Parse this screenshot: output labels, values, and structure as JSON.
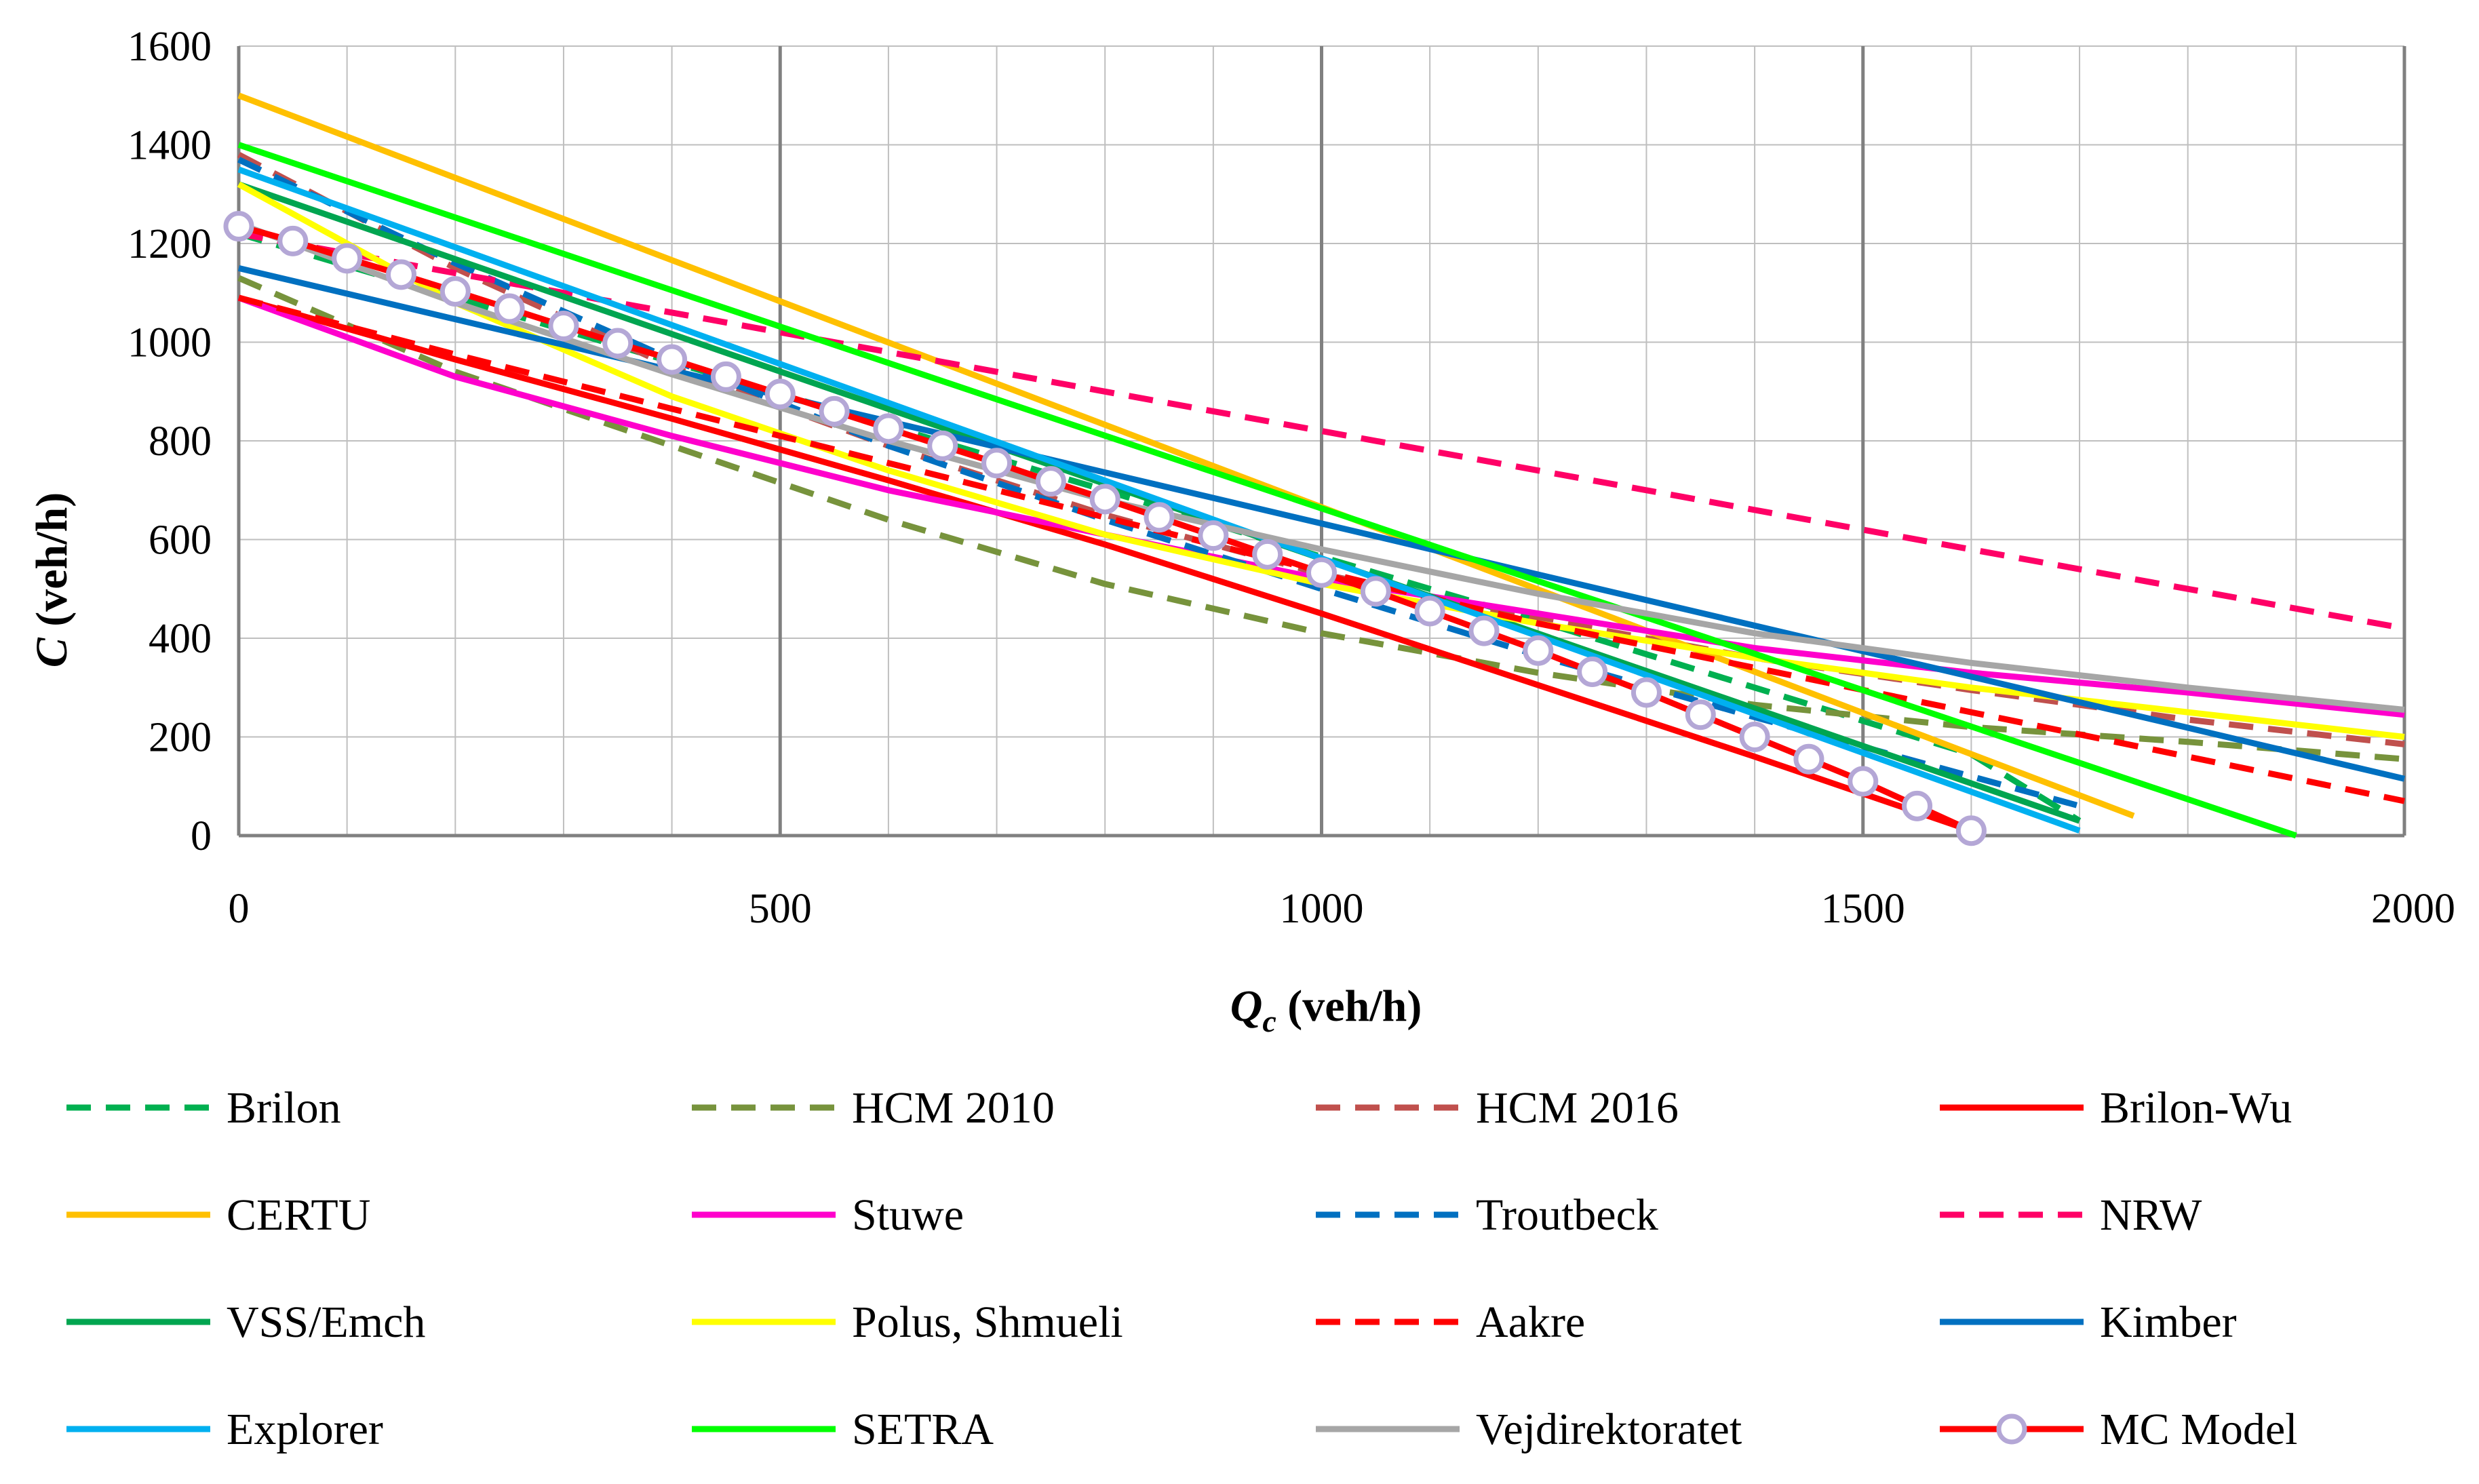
{
  "chart_data": {
    "type": "line",
    "title": "",
    "xlabel": "Q",
    "xlabel_sub": "c",
    "xlabel_unit": " (veh/h)",
    "ylabel": "C",
    "ylabel_unit": " (veh/h)",
    "xlim": [
      0,
      2000
    ],
    "ylim": [
      0,
      1600
    ],
    "x_ticks": [
      0,
      500,
      1000,
      1500,
      2000
    ],
    "y_ticks": [
      0,
      200,
      400,
      600,
      800,
      1000,
      1200,
      1400,
      1600
    ],
    "x_tick_labels": [
      "0",
      "500",
      "1000",
      "1500",
      "2000"
    ],
    "y_tick_labels": [
      "0",
      "200",
      "400",
      "600",
      "800",
      "1000",
      "1200",
      "1400",
      "1600"
    ],
    "grid": true,
    "legend_position": "bottom",
    "series": [
      {
        "name": "Brilon",
        "color": "#00B050",
        "dash": "dashed",
        "x": [
          0,
          200,
          400,
          600,
          800,
          1000,
          1200,
          1400,
          1600,
          1700
        ],
        "y": [
          1220,
          1090,
          960,
          830,
          700,
          565,
          435,
          300,
          165,
          30
        ]
      },
      {
        "name": "HCM 2010",
        "color": "#77933C",
        "dash": "dashed",
        "x": [
          0,
          200,
          400,
          600,
          800,
          1000,
          1200,
          1400,
          1600,
          1800,
          2000
        ],
        "y": [
          1130,
          940,
          790,
          640,
          510,
          410,
          330,
          265,
          220,
          190,
          155
        ]
      },
      {
        "name": "HCM 2016",
        "color": "#C0504D",
        "dash": "dashed",
        "x": [
          0,
          200,
          400,
          600,
          800,
          1000,
          1200,
          1400,
          1600,
          1800,
          2000
        ],
        "y": [
          1380,
          1150,
          950,
          790,
          650,
          530,
          440,
          360,
          295,
          235,
          185
        ]
      },
      {
        "name": "Brilon-Wu",
        "color": "#FF0000",
        "dash": "solid",
        "x": [
          0,
          200,
          400,
          600,
          800,
          1000,
          1200,
          1400,
          1600
        ],
        "y": [
          1090,
          965,
          845,
          720,
          590,
          450,
          305,
          160,
          10
        ]
      },
      {
        "name": "CERTU",
        "color": "#FFC000",
        "dash": "solid",
        "x": [
          0,
          1750
        ],
        "y": [
          1500,
          40
        ]
      },
      {
        "name": "Stuwe",
        "color": "#FF00CC",
        "dash": "solid",
        "x": [
          0,
          200,
          400,
          600,
          800,
          1000,
          1200,
          1400,
          1600,
          1800,
          2000
        ],
        "y": [
          1090,
          930,
          810,
          700,
          610,
          520,
          450,
          380,
          330,
          290,
          245
        ]
      },
      {
        "name": "Troutbeck",
        "color": "#0070C0",
        "dash": "dashed",
        "x": [
          0,
          200,
          400,
          600,
          800,
          1000,
          1200,
          1400,
          1600,
          1700
        ],
        "y": [
          1370,
          1160,
          965,
          790,
          640,
          500,
          365,
          240,
          120,
          60
        ]
      },
      {
        "name": "NRW",
        "color": "#FF0066",
        "dash": "dashed",
        "x": [
          0,
          2000
        ],
        "y": [
          1220,
          420
        ]
      },
      {
        "name": "VSS/Emch",
        "color": "#00A550",
        "dash": "solid",
        "x": [
          0,
          1700
        ],
        "y": [
          1320,
          30
        ]
      },
      {
        "name": "Polus, Shmueli",
        "color": "#FFFF00",
        "dash": "solid",
        "x": [
          0,
          200,
          400,
          600,
          800,
          1000,
          1200,
          1400,
          1600,
          1800,
          2000
        ],
        "y": [
          1320,
          1080,
          890,
          740,
          610,
          510,
          430,
          360,
          300,
          250,
          200
        ]
      },
      {
        "name": "Aakre",
        "color": "#FF0000",
        "dash": "dashed",
        "x": [
          0,
          200,
          400,
          600,
          800,
          1000,
          1200,
          1400,
          1600,
          1800,
          2000
        ],
        "y": [
          1090,
          975,
          865,
          755,
          645,
          535,
          430,
          340,
          250,
          160,
          70
        ]
      },
      {
        "name": "Kimber",
        "color": "#0070C0",
        "dash": "solid",
        "x": [
          0,
          2000
        ],
        "y": [
          1150,
          115
        ]
      },
      {
        "name": "Explorer",
        "color": "#00B0F0",
        "dash": "solid",
        "x": [
          0,
          1700
        ],
        "y": [
          1350,
          10
        ]
      },
      {
        "name": "SETRA",
        "color": "#00FF00",
        "dash": "solid",
        "x": [
          0,
          1900
        ],
        "y": [
          1400,
          0
        ]
      },
      {
        "name": "Vejdirektoratet",
        "color": "#A6A6A6",
        "dash": "solid",
        "x": [
          0,
          200,
          400,
          600,
          800,
          1000,
          1200,
          1400,
          1600,
          1800,
          2000
        ],
        "y": [
          1240,
          1080,
          935,
          800,
          680,
          580,
          490,
          410,
          350,
          300,
          255
        ]
      },
      {
        "name": "MC Model",
        "color": "#FF0000",
        "dash": "solid",
        "marker": "circle",
        "marker_fill": "#ffffff",
        "marker_edge": "#B4A7D6",
        "x": [
          0,
          50,
          100,
          150,
          200,
          250,
          300,
          350,
          400,
          450,
          500,
          550,
          600,
          650,
          700,
          750,
          800,
          850,
          900,
          950,
          1000,
          1050,
          1100,
          1150,
          1200,
          1250,
          1300,
          1350,
          1400,
          1450,
          1500,
          1550,
          1600
        ],
        "y": [
          1235,
          1205,
          1170,
          1137,
          1103,
          1068,
          1033,
          998,
          965,
          930,
          895,
          860,
          825,
          790,
          755,
          718,
          682,
          645,
          608,
          570,
          533,
          495,
          455,
          415,
          375,
          332,
          290,
          245,
          200,
          155,
          110,
          60,
          10
        ]
      }
    ]
  }
}
